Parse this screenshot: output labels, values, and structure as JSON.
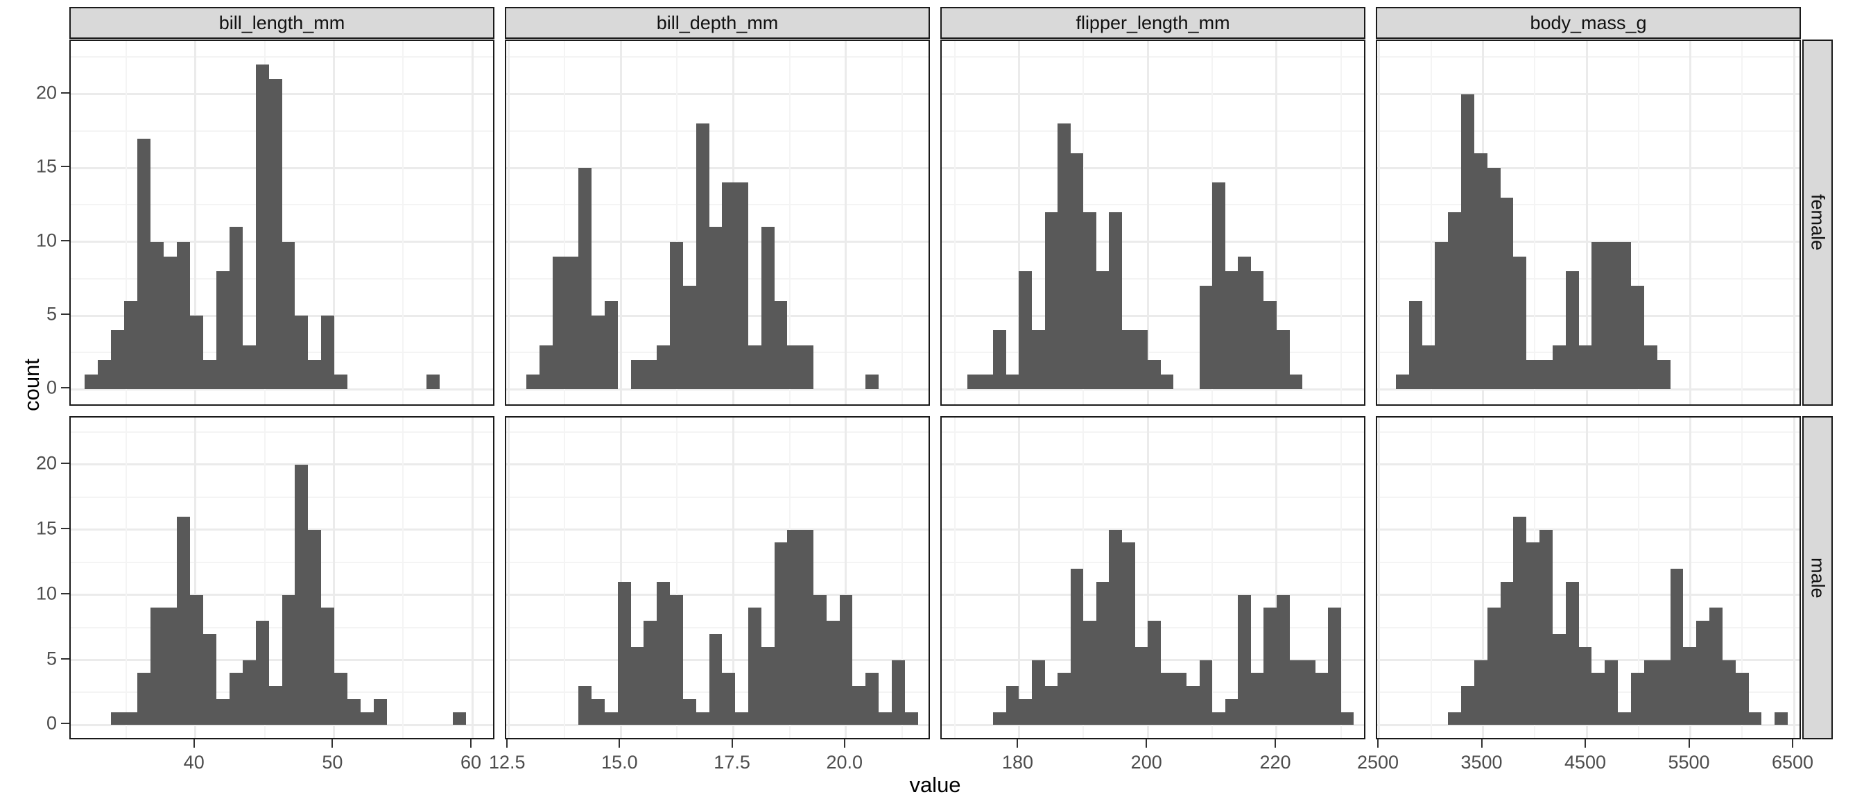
{
  "chart_data": {
    "type": "bar",
    "subtype": "faceted-histogram-grid",
    "title": "",
    "xlabel": "value",
    "ylabel": "count",
    "legend": "none",
    "grid": "on",
    "bar_color": "#595959",
    "strip_bg": "#D9D9D9",
    "grid_major_color": "#EBEBEB",
    "grid_minor_color": "#F4F4F4",
    "panel_border_color": "#1a1a1a",
    "axis_text_color": "#4D4D4D",
    "facet_rows": [
      "female",
      "male"
    ],
    "y_axis": {
      "range": [
        -1.2,
        23.6
      ],
      "major_ticks": [
        {
          "v": 0,
          "label": "0"
        },
        {
          "v": 5,
          "label": "5"
        },
        {
          "v": 10,
          "label": "10"
        },
        {
          "v": 15,
          "label": "15"
        },
        {
          "v": 20,
          "label": "20"
        }
      ],
      "minor_ticks": [
        2.5,
        7.5,
        12.5,
        17.5,
        22.5
      ]
    },
    "columns": [
      {
        "name": "bill_length_mm",
        "x_range": [
          31.0,
          61.7
        ],
        "x_major_ticks": [
          {
            "v": 40,
            "label": "40"
          },
          {
            "v": 50,
            "label": "50"
          },
          {
            "v": 60,
            "label": "60"
          }
        ],
        "x_minor_ticks": [
          35,
          45,
          55
        ],
        "female": {
          "x0": 32.0,
          "binwidth": 0.95,
          "counts": [
            1,
            2,
            4,
            6,
            17,
            10,
            9,
            10,
            5,
            2,
            8,
            11,
            3,
            22,
            21,
            10,
            5,
            2,
            5,
            1,
            0,
            0,
            0,
            0,
            0,
            0,
            1
          ]
        },
        "male": {
          "x0": 33.9,
          "binwidth": 0.95,
          "counts": [
            1,
            1,
            4,
            9,
            9,
            16,
            10,
            7,
            2,
            4,
            5,
            8,
            3,
            10,
            20,
            15,
            9,
            4,
            2,
            1,
            2,
            0,
            0,
            0,
            0,
            0,
            1
          ]
        }
      },
      {
        "name": "bill_depth_mm",
        "x_range": [
          12.45,
          21.9
        ],
        "x_major_ticks": [
          {
            "v": 12.5,
            "label": "12.5"
          },
          {
            "v": 15,
            "label": "15.0"
          },
          {
            "v": 17.5,
            "label": "17.5"
          },
          {
            "v": 20,
            "label": "20.0"
          }
        ],
        "x_minor_ticks": [
          13.75,
          16.25,
          18.75,
          21.25
        ],
        "female": {
          "x0": 12.9,
          "binwidth": 0.29,
          "counts": [
            1,
            3,
            9,
            9,
            15,
            5,
            6,
            0,
            2,
            2,
            3,
            10,
            7,
            18,
            11,
            14,
            14,
            3,
            11,
            6,
            3,
            3,
            0,
            0,
            0,
            0,
            1
          ]
        },
        "male": {
          "x0": 14.06,
          "binwidth": 0.29,
          "counts": [
            3,
            2,
            1,
            11,
            6,
            8,
            11,
            10,
            2,
            1,
            7,
            4,
            1,
            9,
            6,
            14,
            15,
            15,
            10,
            8,
            10,
            3,
            4,
            1,
            5,
            1
          ]
        }
      },
      {
        "name": "flipper_length_mm",
        "x_range": [
          168.0,
          234.0
        ],
        "x_major_ticks": [
          {
            "v": 180,
            "label": "180"
          },
          {
            "v": 200,
            "label": "200"
          },
          {
            "v": 220,
            "label": "220"
          }
        ],
        "x_minor_ticks": [
          170,
          190,
          210,
          230
        ],
        "female": {
          "x0": 172.0,
          "binwidth": 2.0,
          "counts": [
            1,
            1,
            4,
            1,
            8,
            4,
            12,
            18,
            16,
            12,
            8,
            12,
            4,
            4,
            2,
            1,
            0,
            0,
            7,
            14,
            8,
            9,
            8,
            6,
            4,
            1
          ]
        },
        "male": {
          "x0": 176.0,
          "binwidth": 2.0,
          "counts": [
            1,
            3,
            2,
            5,
            3,
            4,
            12,
            8,
            11,
            15,
            14,
            6,
            8,
            4,
            4,
            3,
            5,
            1,
            2,
            10,
            4,
            9,
            10,
            5,
            5,
            4,
            9,
            1
          ]
        }
      },
      {
        "name": "body_mass_g",
        "x_range": [
          2480,
          6580
        ],
        "x_major_ticks": [
          {
            "v": 2500,
            "label": "2500"
          },
          {
            "v": 3500,
            "label": "3500"
          },
          {
            "v": 4500,
            "label": "4500"
          },
          {
            "v": 5500,
            "label": "5500"
          },
          {
            "v": 6500,
            "label": "6500"
          }
        ],
        "x_minor_ticks": [
          3000,
          4000,
          5000,
          6000
        ],
        "female": {
          "x0": 2660,
          "binwidth": 126,
          "counts": [
            1,
            6,
            3,
            10,
            12,
            20,
            16,
            15,
            13,
            9,
            2,
            2,
            3,
            8,
            3,
            10,
            10,
            10,
            7,
            3,
            2
          ]
        },
        "male": {
          "x0": 3164,
          "binwidth": 126,
          "counts": [
            1,
            3,
            5,
            9,
            11,
            16,
            14,
            15,
            7,
            11,
            6,
            4,
            5,
            1,
            4,
            5,
            5,
            12,
            6,
            8,
            9,
            5,
            4,
            1,
            0,
            1
          ]
        }
      }
    ]
  }
}
